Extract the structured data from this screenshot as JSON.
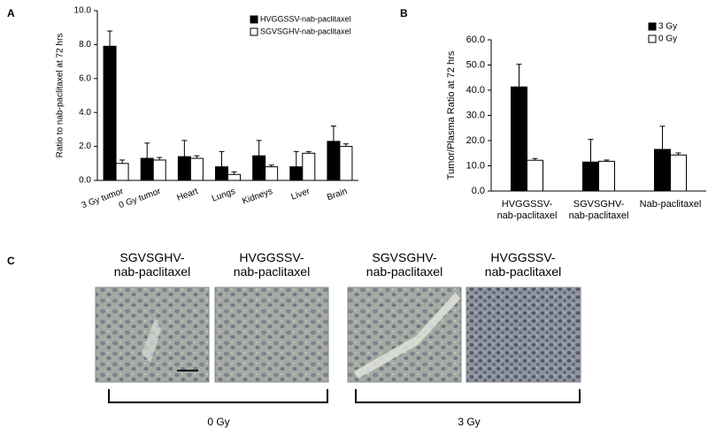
{
  "chart_data": [
    {
      "type": "bar",
      "panel": "A",
      "y_label": "Ratio to nab-paclitaxel at 72 hrs",
      "categories": [
        "3 Gy tumor",
        "0 Gy tumor",
        "Heart",
        "Lungs",
        "Kidneys",
        "Liver",
        "Brain"
      ],
      "series": [
        {
          "name": "HVGGSSV-nab-paclitaxel",
          "color": "#000000",
          "values": [
            7.9,
            1.3,
            1.4,
            0.8,
            1.45,
            0.8,
            2.3
          ],
          "errors": [
            0.9,
            0.9,
            0.95,
            0.9,
            0.9,
            0.9,
            0.9
          ]
        },
        {
          "name": "SGVSGHV-nab-paclitaxel",
          "color": "#ffffff",
          "values": [
            1.0,
            1.2,
            1.3,
            0.35,
            0.8,
            1.6,
            2.0
          ],
          "errors": [
            0.2,
            0.15,
            0.15,
            0.15,
            0.1,
            0.1,
            0.15
          ]
        }
      ],
      "ylim": [
        0,
        10
      ],
      "yticks": [
        {
          "value": 0,
          "label": "0.0"
        },
        {
          "value": 2,
          "label": "2.0"
        },
        {
          "value": 4,
          "label": "4.0"
        },
        {
          "value": 6,
          "label": "6.0"
        },
        {
          "value": 8,
          "label": "8.0"
        },
        {
          "value": 10,
          "label": "10.0"
        }
      ],
      "legend": "top-right"
    },
    {
      "type": "bar",
      "panel": "B",
      "y_label": "Tumor/Plasma Ratio at 72 hrs",
      "categories": [
        "HVGGSSV-\nnab-paclitaxel",
        "SGVSGHV-\nnab-paclitaxel",
        "Nab-paclitaxel"
      ],
      "series": [
        {
          "name": "3 Gy",
          "color": "#000000",
          "values": [
            41.3,
            11.5,
            16.5
          ],
          "errors": [
            9,
            9,
            9.2
          ]
        },
        {
          "name": "0 Gy",
          "color": "#ffffff",
          "values": [
            12.2,
            11.8,
            14.3
          ],
          "errors": [
            0.7,
            0.5,
            0.8
          ]
        }
      ],
      "ylim": [
        0,
        60
      ],
      "yticks": [
        {
          "value": 0,
          "label": "0.0"
        },
        {
          "value": 10,
          "label": "10.0"
        },
        {
          "value": 20,
          "label": "20.0"
        },
        {
          "value": 30,
          "label": "30.0"
        },
        {
          "value": 40,
          "label": "40.0"
        },
        {
          "value": 50,
          "label": "50.0"
        },
        {
          "value": 60,
          "label": "60.0"
        }
      ],
      "legend": "top-right"
    }
  ],
  "panel_c": {
    "label": "C",
    "images": [
      "SGVSGHV-\nnab-paclitaxel",
      "HVGGSSV-\nnab-paclitaxel",
      "SGVSGHV-\nnab-paclitaxel",
      "HVGGSSV-\nnab-paclitaxel"
    ],
    "groups": [
      "0 Gy",
      "3 Gy"
    ]
  }
}
